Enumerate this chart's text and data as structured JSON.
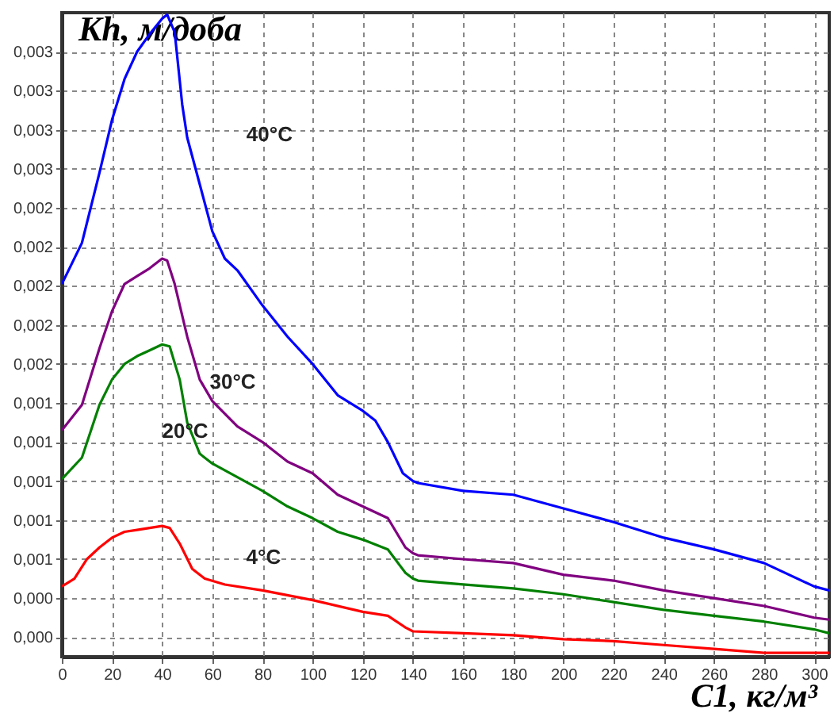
{
  "chart_data": {
    "type": "line",
    "xlabel": "C1, кг/м³",
    "ylabel": "Kh, м/доба",
    "xlim": [
      0,
      306
    ],
    "ylim": [
      0.0001,
      0.0034
    ],
    "xticks": [
      0,
      20,
      40,
      60,
      80,
      100,
      120,
      140,
      160,
      180,
      200,
      220,
      240,
      260,
      280,
      300
    ],
    "yticks": [
      {
        "value": 0.0002,
        "label": "0,000"
      },
      {
        "value": 0.0004,
        "label": "0,000"
      },
      {
        "value": 0.0006,
        "label": "0,001"
      },
      {
        "value": 0.0008,
        "label": "0,001"
      },
      {
        "value": 0.001,
        "label": "0,001"
      },
      {
        "value": 0.0012,
        "label": "0,001"
      },
      {
        "value": 0.0014,
        "label": "0,001"
      },
      {
        "value": 0.0016,
        "label": "0,002"
      },
      {
        "value": 0.0018,
        "label": "0,002"
      },
      {
        "value": 0.002,
        "label": "0,002"
      },
      {
        "value": 0.0022,
        "label": "0,002"
      },
      {
        "value": 0.0024,
        "label": "0,002"
      },
      {
        "value": 0.0026,
        "label": "0,003"
      },
      {
        "value": 0.0028,
        "label": "0,003"
      },
      {
        "value": 0.003,
        "label": "0,003"
      },
      {
        "value": 0.0032,
        "label": "0,003"
      }
    ],
    "grid": true,
    "marker": "none",
    "line_style": "solid",
    "series": [
      {
        "name": "40°C",
        "color": "#0000ff",
        "x": [
          0,
          8,
          15,
          20,
          25,
          30,
          35,
          40,
          42,
          45,
          48,
          50,
          55,
          60,
          65,
          70,
          80,
          90,
          100,
          110,
          120,
          125,
          130,
          136,
          140,
          142,
          160,
          180,
          200,
          220,
          240,
          260,
          280,
          300,
          306
        ],
        "values": [
          0.00201,
          0.00222,
          0.00258,
          0.00285,
          0.00306,
          0.0032,
          0.00329,
          0.00337,
          0.00339,
          0.0033,
          0.00293,
          0.00276,
          0.00252,
          0.00228,
          0.00214,
          0.00208,
          0.0019,
          0.00174,
          0.0016,
          0.00144,
          0.00136,
          0.00131,
          0.0012,
          0.00104,
          0.001,
          0.00099,
          0.00095,
          0.00093,
          0.00086,
          0.00079,
          0.00071,
          0.00065,
          0.00058,
          0.00046,
          0.00044
        ]
      },
      {
        "name": "30°C",
        "color": "#800080",
        "x": [
          0,
          8,
          15,
          20,
          25,
          30,
          35,
          40,
          42,
          45,
          50,
          55,
          60,
          70,
          80,
          90,
          100,
          110,
          120,
          130,
          137,
          140,
          142,
          160,
          180,
          200,
          220,
          240,
          260,
          280,
          300,
          306
        ],
        "values": [
          0.00126,
          0.00139,
          0.00168,
          0.00187,
          0.00201,
          0.00205,
          0.00209,
          0.00214,
          0.00213,
          0.00201,
          0.00174,
          0.00152,
          0.00141,
          0.00128,
          0.0012,
          0.0011,
          0.00104,
          0.00093,
          0.00087,
          0.00081,
          0.00066,
          0.00063,
          0.00062,
          0.0006,
          0.00058,
          0.00052,
          0.00049,
          0.00044,
          0.0004,
          0.00036,
          0.0003,
          0.00029
        ]
      },
      {
        "name": "20°C",
        "color": "#008000",
        "x": [
          0,
          8,
          15,
          20,
          25,
          30,
          35,
          40,
          43,
          47,
          50,
          55,
          60,
          70,
          80,
          90,
          100,
          110,
          120,
          130,
          137,
          140,
          142,
          160,
          180,
          200,
          220,
          240,
          260,
          280,
          300,
          306
        ],
        "values": [
          0.00101,
          0.00112,
          0.00139,
          0.00152,
          0.0016,
          0.00164,
          0.00167,
          0.0017,
          0.00169,
          0.00152,
          0.0013,
          0.00114,
          0.00109,
          0.00102,
          0.00095,
          0.00087,
          0.00081,
          0.00074,
          0.0007,
          0.00065,
          0.00053,
          0.0005,
          0.00049,
          0.00047,
          0.00045,
          0.00042,
          0.00038,
          0.00034,
          0.00031,
          0.00028,
          0.00024,
          0.00022
        ]
      },
      {
        "name": "4°C",
        "color": "#ff0000",
        "x": [
          0,
          5,
          10,
          15,
          20,
          25,
          30,
          35,
          40,
          43,
          47,
          52,
          57,
          65,
          80,
          100,
          120,
          130,
          137,
          140,
          160,
          180,
          200,
          220,
          240,
          260,
          280,
          300,
          306
        ],
        "values": [
          0.00046,
          0.0005,
          0.0006,
          0.00066,
          0.00071,
          0.00074,
          0.00075,
          0.00076,
          0.00077,
          0.00076,
          0.00068,
          0.00055,
          0.0005,
          0.00047,
          0.00044,
          0.00039,
          0.00033,
          0.00031,
          0.00025,
          0.00023,
          0.00022,
          0.00021,
          0.00019,
          0.00018,
          0.00016,
          0.00014,
          0.00012,
          0.00012,
          0.00012
        ]
      }
    ]
  }
}
